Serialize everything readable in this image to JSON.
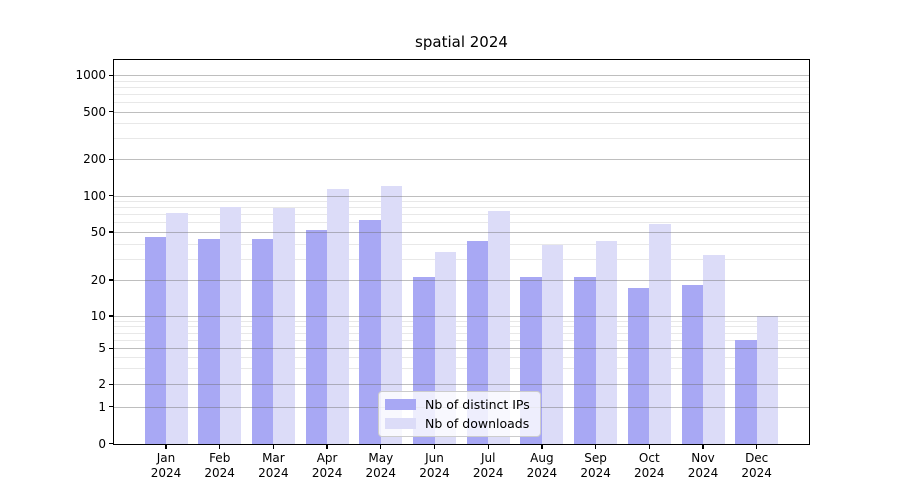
{
  "chart_data": {
    "type": "bar",
    "title": "spatial 2024",
    "xlabel": "",
    "ylabel": "",
    "categories": [
      "Jan",
      "Feb",
      "Mar",
      "Apr",
      "May",
      "Jun",
      "Jul",
      "Aug",
      "Sep",
      "Oct",
      "Nov",
      "Dec"
    ],
    "category_year": "2024",
    "series": [
      {
        "name": "Nb of distinct IPs",
        "color": "#a8a8f4",
        "values": [
          45,
          44,
          44,
          52,
          63,
          21,
          42,
          21,
          21,
          17,
          18,
          6
        ]
      },
      {
        "name": "Nb of downloads",
        "color": "#dcdcf8",
        "values": [
          72,
          80,
          79,
          114,
          120,
          34,
          75,
          39,
          42,
          58,
          32,
          10
        ]
      }
    ],
    "yscale": "symlog",
    "yticks": [
      0,
      1,
      2,
      5,
      10,
      20,
      50,
      100,
      200,
      500,
      1000
    ],
    "ylim": [
      0,
      1400
    ],
    "grid": "on",
    "legend_position": "lower center"
  }
}
